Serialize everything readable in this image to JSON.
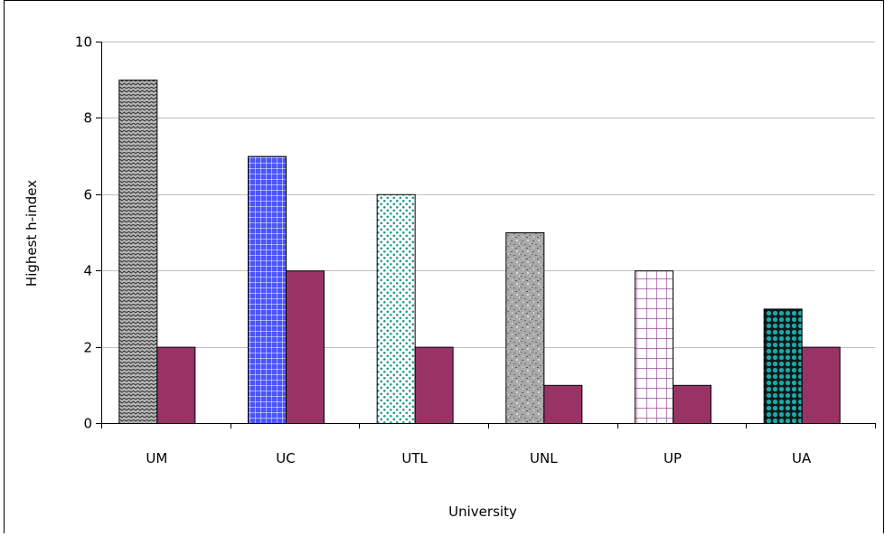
{
  "chart_data": {
    "type": "bar",
    "title": "",
    "xlabel": "University",
    "ylabel": "Highest h-index",
    "categories": [
      "UM",
      "UC",
      "UTL",
      "UNL",
      "UP",
      "UA"
    ],
    "series": [
      {
        "values": [
          9,
          7,
          6,
          5,
          4,
          3
        ],
        "colors": [
          "#9a9a9a",
          "#4a55ff",
          "#1f9a8a",
          "#888888",
          "#8a2a8a",
          "#1aa8a8"
        ],
        "patterns": [
          "zigzag",
          "grid-blue",
          "dots-teal",
          "granite",
          "grid-purple",
          "circles-teal"
        ]
      },
      {
        "values": [
          2,
          4,
          2,
          1,
          1,
          2
        ],
        "color": "#993366"
      }
    ],
    "ylim": [
      0,
      10
    ],
    "yticks": [
      0,
      2,
      4,
      6,
      8,
      10
    ],
    "grid": true,
    "legend": "none"
  }
}
